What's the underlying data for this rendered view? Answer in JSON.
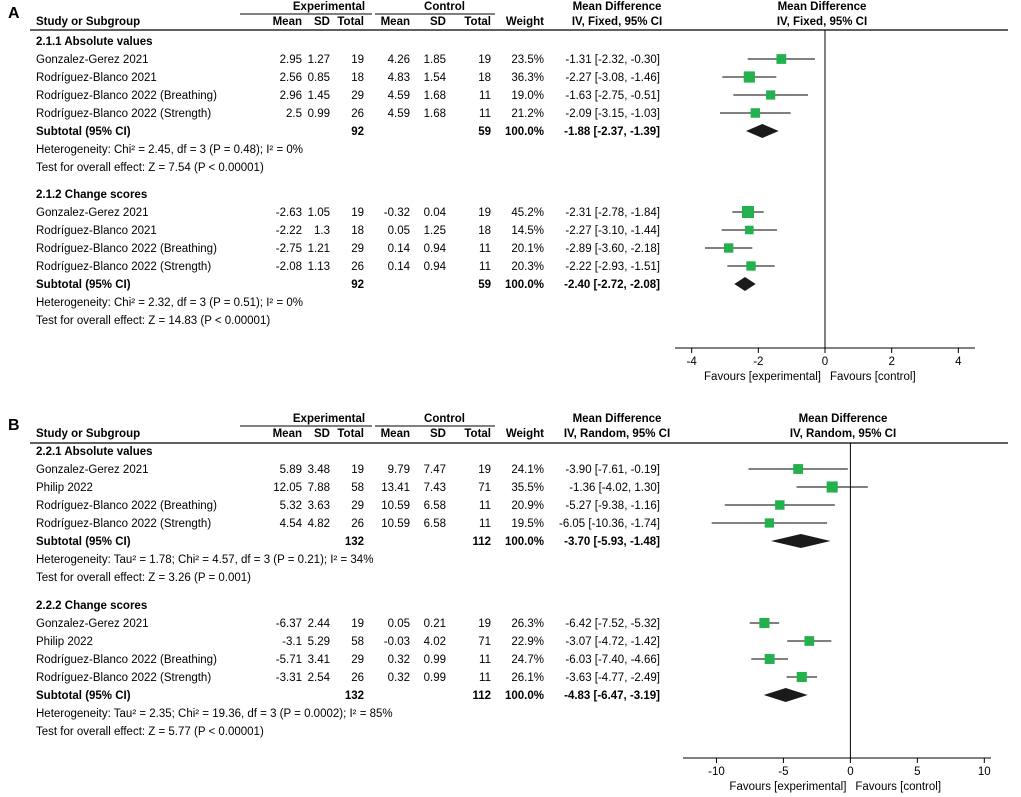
{
  "chart_data": [
    {
      "type": "forest",
      "panel_label": "A",
      "headers": {
        "study": "Study or Subgroup",
        "group1": "Experimental",
        "group2": "Control",
        "mean": "Mean",
        "sd": "SD",
        "total": "Total",
        "weight": "Weight",
        "effect_title": "Mean Difference",
        "effect_method": "IV, Fixed, 95% CI",
        "plot_title": "Mean Difference",
        "plot_method": "IV, Fixed, 95% CI"
      },
      "xlim": [
        -4.5,
        4.5
      ],
      "ticks": [
        -4,
        -2,
        0,
        2,
        4
      ],
      "tick_labels": [
        "-4",
        "-2",
        "0",
        "2",
        "4"
      ],
      "favours_left": "Favours [experimental]",
      "favours_right": "Favours [control]",
      "subgroups": [
        {
          "title": "2.1.1 Absolute values",
          "studies": [
            {
              "name": "Gonzalez-Gerez 2021",
              "e_mean": "2.95",
              "e_sd": "1.27",
              "e_n": "19",
              "c_mean": "4.26",
              "c_sd": "1.85",
              "c_n": "19",
              "weight": "23.5%",
              "ci_text": "-1.31 [-2.32, -0.30]",
              "md": -1.31,
              "lo": -2.32,
              "hi": -0.3,
              "w": 23.5
            },
            {
              "name": "Rodríguez-Blanco 2021",
              "e_mean": "2.56",
              "e_sd": "0.85",
              "e_n": "18",
              "c_mean": "4.83",
              "c_sd": "1.54",
              "c_n": "18",
              "weight": "36.3%",
              "ci_text": "-2.27 [-3.08, -1.46]",
              "md": -2.27,
              "lo": -3.08,
              "hi": -1.46,
              "w": 36.3
            },
            {
              "name": "Rodríguez-Blanco 2022 (Breathing)",
              "e_mean": "2.96",
              "e_sd": "1.45",
              "e_n": "29",
              "c_mean": "4.59",
              "c_sd": "1.68",
              "c_n": "11",
              "weight": "19.0%",
              "ci_text": "-1.63 [-2.75, -0.51]",
              "md": -1.63,
              "lo": -2.75,
              "hi": -0.51,
              "w": 19.0
            },
            {
              "name": "Rodríguez-Blanco 2022 (Strength)",
              "e_mean": "2.5",
              "e_sd": "0.99",
              "e_n": "26",
              "c_mean": "4.59",
              "c_sd": "1.68",
              "c_n": "11",
              "weight": "21.2%",
              "ci_text": "-2.09 [-3.15, -1.03]",
              "md": -2.09,
              "lo": -3.15,
              "hi": -1.03,
              "w": 21.2
            }
          ],
          "subtotal": {
            "label": "Subtotal (95% CI)",
            "e_n": "92",
            "c_n": "59",
            "weight": "100.0%",
            "ci_text": "-1.88 [-2.37, -1.39]",
            "md": -1.88,
            "lo": -2.37,
            "hi": -1.39
          },
          "heterogeneity": "Heterogeneity: Chi² = 2.45, df = 3 (P = 0.48); I² = 0%",
          "overall": "Test for overall effect: Z = 7.54 (P < 0.00001)"
        },
        {
          "title": "2.1.2 Change scores",
          "studies": [
            {
              "name": "Gonzalez-Gerez 2021",
              "e_mean": "-2.63",
              "e_sd": "1.05",
              "e_n": "19",
              "c_mean": "-0.32",
              "c_sd": "0.04",
              "c_n": "19",
              "weight": "45.2%",
              "ci_text": "-2.31 [-2.78, -1.84]",
              "md": -2.31,
              "lo": -2.78,
              "hi": -1.84,
              "w": 45.2
            },
            {
              "name": "Rodríguez-Blanco 2021",
              "e_mean": "-2.22",
              "e_sd": "1.3",
              "e_n": "18",
              "c_mean": "0.05",
              "c_sd": "1.25",
              "c_n": "18",
              "weight": "14.5%",
              "ci_text": "-2.27 [-3.10, -1.44]",
              "md": -2.27,
              "lo": -3.1,
              "hi": -1.44,
              "w": 14.5
            },
            {
              "name": "Rodríguez-Blanco 2022 (Breathing)",
              "e_mean": "-2.75",
              "e_sd": "1.21",
              "e_n": "29",
              "c_mean": "0.14",
              "c_sd": "0.94",
              "c_n": "11",
              "weight": "20.1%",
              "ci_text": "-2.89 [-3.60, -2.18]",
              "md": -2.89,
              "lo": -3.6,
              "hi": -2.18,
              "w": 20.1
            },
            {
              "name": "Rodríguez-Blanco 2022 (Strength)",
              "e_mean": "-2.08",
              "e_sd": "1.13",
              "e_n": "26",
              "c_mean": "0.14",
              "c_sd": "0.94",
              "c_n": "11",
              "weight": "20.3%",
              "ci_text": "-2.22 [-2.93, -1.51]",
              "md": -2.22,
              "lo": -2.93,
              "hi": -1.51,
              "w": 20.3
            }
          ],
          "subtotal": {
            "label": "Subtotal (95% CI)",
            "e_n": "92",
            "c_n": "59",
            "weight": "100.0%",
            "ci_text": "-2.40 [-2.72, -2.08]",
            "md": -2.4,
            "lo": -2.72,
            "hi": -2.08
          },
          "heterogeneity": "Heterogeneity: Chi² = 2.32, df = 3 (P = 0.51); I² = 0%",
          "overall": "Test for overall effect: Z = 14.83 (P < 0.00001)"
        }
      ]
    },
    {
      "type": "forest",
      "panel_label": "B",
      "headers": {
        "study": "Study or Subgroup",
        "group1": "Experimental",
        "group2": "Control",
        "mean": "Mean",
        "sd": "SD",
        "total": "Total",
        "weight": "Weight",
        "effect_title": "Mean Difference",
        "effect_method": "IV, Random, 95% CI",
        "plot_title": "Mean Difference",
        "plot_method": "IV, Random, 95% CI"
      },
      "xlim": [
        -12.5,
        10.5
      ],
      "ticks": [
        -10,
        -5,
        0,
        5,
        10
      ],
      "tick_labels": [
        "-10",
        "-5",
        "0",
        "5",
        "10"
      ],
      "favours_left": "Favours [experimental]",
      "favours_right": "Favours [control]",
      "subgroups": [
        {
          "title": "2.2.1 Absolute values",
          "studies": [
            {
              "name": "Gonzalez-Gerez 2021",
              "e_mean": "5.89",
              "e_sd": "3.48",
              "e_n": "19",
              "c_mean": "9.79",
              "c_sd": "7.47",
              "c_n": "19",
              "weight": "24.1%",
              "ci_text": "-3.90 [-7.61, -0.19]",
              "md": -3.9,
              "lo": -7.61,
              "hi": -0.19,
              "w": 24.1
            },
            {
              "name": "Philip 2022",
              "e_mean": "12.05",
              "e_sd": "7.88",
              "e_n": "58",
              "c_mean": "13.41",
              "c_sd": "7.43",
              "c_n": "71",
              "weight": "35.5%",
              "ci_text": "-1.36 [-4.02, 1.30]",
              "md": -1.36,
              "lo": -4.02,
              "hi": 1.3,
              "w": 35.5
            },
            {
              "name": "Rodríguez-Blanco 2022 (Breathing)",
              "e_mean": "5.32",
              "e_sd": "3.63",
              "e_n": "29",
              "c_mean": "10.59",
              "c_sd": "6.58",
              "c_n": "11",
              "weight": "20.9%",
              "ci_text": "-5.27 [-9.38, -1.16]",
              "md": -5.27,
              "lo": -9.38,
              "hi": -1.16,
              "w": 20.9
            },
            {
              "name": "Rodríguez-Blanco 2022 (Strength)",
              "e_mean": "4.54",
              "e_sd": "4.82",
              "e_n": "26",
              "c_mean": "10.59",
              "c_sd": "6.58",
              "c_n": "11",
              "weight": "19.5%",
              "ci_text": "-6.05 [-10.36, -1.74]",
              "md": -6.05,
              "lo": -10.36,
              "hi": -1.74,
              "w": 19.5
            }
          ],
          "subtotal": {
            "label": "Subtotal (95% CI)",
            "e_n": "132",
            "c_n": "112",
            "weight": "100.0%",
            "ci_text": "-3.70 [-5.93, -1.48]",
            "md": -3.7,
            "lo": -5.93,
            "hi": -1.48
          },
          "heterogeneity": "Heterogeneity: Tau² = 1.78; Chi² = 4.57, df = 3 (P = 0.21); I² = 34%",
          "overall": "Test for overall effect: Z = 3.26 (P = 0.001)"
        },
        {
          "title": "2.2.2 Change scores",
          "studies": [
            {
              "name": "Gonzalez-Gerez 2021",
              "e_mean": "-6.37",
              "e_sd": "2.44",
              "e_n": "19",
              "c_mean": "0.05",
              "c_sd": "0.21",
              "c_n": "19",
              "weight": "26.3%",
              "ci_text": "-6.42 [-7.52, -5.32]",
              "md": -6.42,
              "lo": -7.52,
              "hi": -5.32,
              "w": 26.3
            },
            {
              "name": "Philip 2022",
              "e_mean": "-3.1",
              "e_sd": "5.29",
              "e_n": "58",
              "c_mean": "-0.03",
              "c_sd": "4.02",
              "c_n": "71",
              "weight": "22.9%",
              "ci_text": "-3.07 [-4.72, -1.42]",
              "md": -3.07,
              "lo": -4.72,
              "hi": -1.42,
              "w": 22.9
            },
            {
              "name": "Rodríguez-Blanco 2022 (Breathing)",
              "e_mean": "-5.71",
              "e_sd": "3.41",
              "e_n": "29",
              "c_mean": "0.32",
              "c_sd": "0.99",
              "c_n": "11",
              "weight": "24.7%",
              "ci_text": "-6.03 [-7.40, -4.66]",
              "md": -6.03,
              "lo": -7.4,
              "hi": -4.66,
              "w": 24.7
            },
            {
              "name": "Rodríguez-Blanco 2022 (Strength)",
              "e_mean": "-3.31",
              "e_sd": "2.54",
              "e_n": "26",
              "c_mean": "0.32",
              "c_sd": "0.99",
              "c_n": "11",
              "weight": "26.1%",
              "ci_text": "-3.63 [-4.77, -2.49]",
              "md": -3.63,
              "lo": -4.77,
              "hi": -2.49,
              "w": 26.1
            }
          ],
          "subtotal": {
            "label": "Subtotal (95% CI)",
            "e_n": "132",
            "c_n": "112",
            "weight": "100.0%",
            "ci_text": "-4.83 [-6.47, -3.19]",
            "md": -4.83,
            "lo": -6.47,
            "hi": -3.19
          },
          "heterogeneity": "Heterogeneity: Tau² = 2.35; Chi² = 19.36, df = 3 (P = 0.0002); I² = 85%",
          "overall": "Test for overall effect: Z = 5.77 (P < 0.00001)"
        }
      ]
    }
  ],
  "colors": {
    "square": "#22b14c",
    "diamond": "#1a1a1a",
    "line": "#000000"
  }
}
